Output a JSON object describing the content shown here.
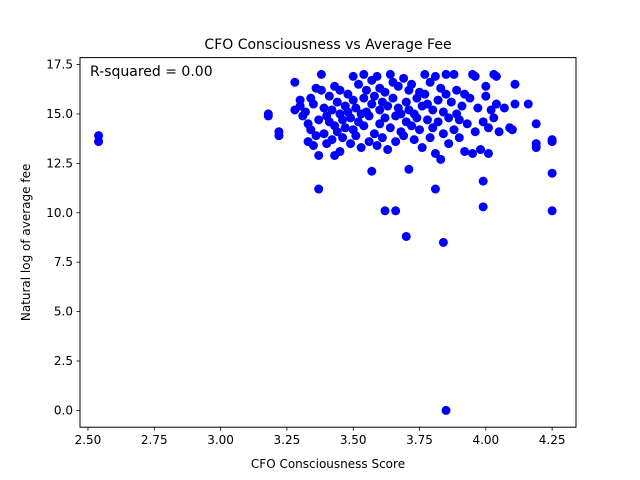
{
  "chart_data": {
    "type": "scatter",
    "title": "CFO Consciousness vs Average Fee",
    "xlabel": "CFO Consciousness Score",
    "ylabel": "Natural log of average fee",
    "annotation": "R-squared = 0.00",
    "xlim": [
      2.47,
      4.34
    ],
    "ylim": [
      -0.85,
      17.85
    ],
    "xticks": [
      "2.50",
      "2.75",
      "3.00",
      "3.25",
      "3.50",
      "3.75",
      "4.00",
      "4.25"
    ],
    "yticks": [
      "0.0",
      "2.5",
      "5.0",
      "7.5",
      "10.0",
      "12.5",
      "15.0",
      "17.5"
    ],
    "grid": false,
    "marker_color": "#0000ff",
    "points": [
      [
        2.54,
        13.9
      ],
      [
        2.54,
        13.6
      ],
      [
        3.18,
        15.0
      ],
      [
        3.18,
        14.9
      ],
      [
        3.22,
        14.1
      ],
      [
        3.22,
        13.9
      ],
      [
        3.28,
        16.6
      ],
      [
        3.28,
        15.2
      ],
      [
        3.3,
        15.7
      ],
      [
        3.3,
        15.4
      ],
      [
        3.31,
        14.9
      ],
      [
        3.32,
        15.1
      ],
      [
        3.33,
        14.5
      ],
      [
        3.33,
        13.6
      ],
      [
        3.34,
        15.8
      ],
      [
        3.34,
        14.2
      ],
      [
        3.35,
        13.4
      ],
      [
        3.35,
        15.5
      ],
      [
        3.36,
        13.9
      ],
      [
        3.36,
        16.3
      ],
      [
        3.37,
        14.7
      ],
      [
        3.37,
        12.9
      ],
      [
        3.37,
        11.2
      ],
      [
        3.38,
        16.2
      ],
      [
        3.38,
        17.0
      ],
      [
        3.39,
        15.3
      ],
      [
        3.39,
        14.0
      ],
      [
        3.4,
        14.9
      ],
      [
        3.4,
        13.5
      ],
      [
        3.41,
        15.9
      ],
      [
        3.41,
        14.6
      ],
      [
        3.42,
        15.2
      ],
      [
        3.42,
        13.7
      ],
      [
        3.43,
        16.4
      ],
      [
        3.43,
        14.4
      ],
      [
        3.43,
        12.9
      ],
      [
        3.44,
        15.6
      ],
      [
        3.44,
        14.1
      ],
      [
        3.45,
        16.2
      ],
      [
        3.45,
        15.0
      ],
      [
        3.45,
        13.1
      ],
      [
        3.46,
        14.7
      ],
      [
        3.46,
        13.8
      ],
      [
        3.47,
        15.4
      ],
      [
        3.47,
        14.3
      ],
      [
        3.48,
        16.0
      ],
      [
        3.48,
        15.1
      ],
      [
        3.49,
        13.5
      ],
      [
        3.49,
        14.8
      ],
      [
        3.5,
        15.7
      ],
      [
        3.5,
        16.9
      ],
      [
        3.5,
        14.2
      ],
      [
        3.51,
        15.3
      ],
      [
        3.51,
        13.9
      ],
      [
        3.52,
        16.5
      ],
      [
        3.52,
        14.6
      ],
      [
        3.53,
        15.0
      ],
      [
        3.53,
        13.3
      ],
      [
        3.54,
        17.0
      ],
      [
        3.54,
        15.8
      ],
      [
        3.54,
        14.4
      ],
      [
        3.55,
        16.2
      ],
      [
        3.55,
        15.1
      ],
      [
        3.56,
        13.6
      ],
      [
        3.56,
        14.9
      ],
      [
        3.57,
        16.7
      ],
      [
        3.57,
        15.5
      ],
      [
        3.57,
        12.1
      ],
      [
        3.58,
        14.0
      ],
      [
        3.58,
        15.9
      ],
      [
        3.59,
        16.9
      ],
      [
        3.59,
        13.4
      ],
      [
        3.6,
        15.2
      ],
      [
        3.6,
        14.5
      ],
      [
        3.6,
        16.3
      ],
      [
        3.61,
        13.8
      ],
      [
        3.61,
        15.6
      ],
      [
        3.62,
        14.8
      ],
      [
        3.62,
        16.1
      ],
      [
        3.62,
        10.1
      ],
      [
        3.63,
        15.4
      ],
      [
        3.63,
        13.2
      ],
      [
        3.64,
        17.0
      ],
      [
        3.64,
        14.3
      ],
      [
        3.65,
        15.8
      ],
      [
        3.65,
        16.6
      ],
      [
        3.66,
        14.9
      ],
      [
        3.66,
        13.6
      ],
      [
        3.66,
        10.1
      ],
      [
        3.67,
        15.3
      ],
      [
        3.67,
        16.4
      ],
      [
        3.68,
        14.1
      ],
      [
        3.68,
        15.0
      ],
      [
        3.69,
        16.8
      ],
      [
        3.69,
        13.9
      ],
      [
        3.7,
        15.6
      ],
      [
        3.7,
        14.6
      ],
      [
        3.7,
        8.8
      ],
      [
        3.71,
        16.2
      ],
      [
        3.71,
        15.2
      ],
      [
        3.71,
        12.2
      ],
      [
        3.72,
        14.4
      ],
      [
        3.72,
        16.5
      ],
      [
        3.73,
        15.0
      ],
      [
        3.73,
        13.7
      ],
      [
        3.74,
        15.8
      ],
      [
        3.74,
        14.8
      ],
      [
        3.75,
        16.1
      ],
      [
        3.75,
        14.2
      ],
      [
        3.76,
        15.4
      ],
      [
        3.76,
        13.3
      ],
      [
        3.77,
        17.0
      ],
      [
        3.77,
        16.0
      ],
      [
        3.78,
        14.7
      ],
      [
        3.78,
        15.5
      ],
      [
        3.79,
        13.8
      ],
      [
        3.79,
        16.6
      ],
      [
        3.8,
        15.2
      ],
      [
        3.8,
        14.3
      ],
      [
        3.81,
        16.9
      ],
      [
        3.81,
        13.0
      ],
      [
        3.81,
        11.2
      ],
      [
        3.82,
        15.7
      ],
      [
        3.82,
        14.6
      ],
      [
        3.83,
        16.3
      ],
      [
        3.83,
        12.7
      ],
      [
        3.84,
        15.1
      ],
      [
        3.84,
        14.0
      ],
      [
        3.84,
        8.5
      ],
      [
        3.85,
        16.0
      ],
      [
        3.85,
        17.0
      ],
      [
        3.85,
        0.0
      ],
      [
        3.86,
        14.8
      ],
      [
        3.86,
        13.5
      ],
      [
        3.87,
        15.6
      ],
      [
        3.88,
        17.0
      ],
      [
        3.88,
        14.2
      ],
      [
        3.89,
        16.2
      ],
      [
        3.89,
        15.0
      ],
      [
        3.9,
        13.8
      ],
      [
        3.9,
        14.7
      ],
      [
        3.91,
        15.4
      ],
      [
        3.92,
        16.0
      ],
      [
        3.92,
        13.1
      ],
      [
        3.93,
        14.5
      ],
      [
        3.94,
        15.8
      ],
      [
        3.95,
        17.0
      ],
      [
        3.95,
        13.0
      ],
      [
        3.96,
        14.1
      ],
      [
        3.96,
        16.9
      ],
      [
        3.97,
        15.3
      ],
      [
        3.98,
        13.2
      ],
      [
        3.99,
        14.6
      ],
      [
        3.99,
        11.6
      ],
      [
        3.99,
        10.3
      ],
      [
        4.0,
        16.4
      ],
      [
        4.0,
        15.9
      ],
      [
        4.01,
        14.3
      ],
      [
        4.01,
        13.0
      ],
      [
        4.02,
        15.2
      ],
      [
        4.03,
        17.0
      ],
      [
        4.03,
        14.8
      ],
      [
        4.04,
        16.9
      ],
      [
        4.04,
        15.5
      ],
      [
        4.05,
        14.1
      ],
      [
        4.07,
        15.3
      ],
      [
        4.09,
        14.3
      ],
      [
        4.1,
        14.2
      ],
      [
        4.11,
        16.5
      ],
      [
        4.11,
        15.5
      ],
      [
        4.16,
        15.5
      ],
      [
        4.19,
        14.5
      ],
      [
        4.19,
        13.5
      ],
      [
        4.19,
        13.3
      ],
      [
        4.25,
        13.7
      ],
      [
        4.25,
        13.6
      ],
      [
        4.25,
        12.0
      ],
      [
        4.25,
        10.1
      ]
    ]
  }
}
